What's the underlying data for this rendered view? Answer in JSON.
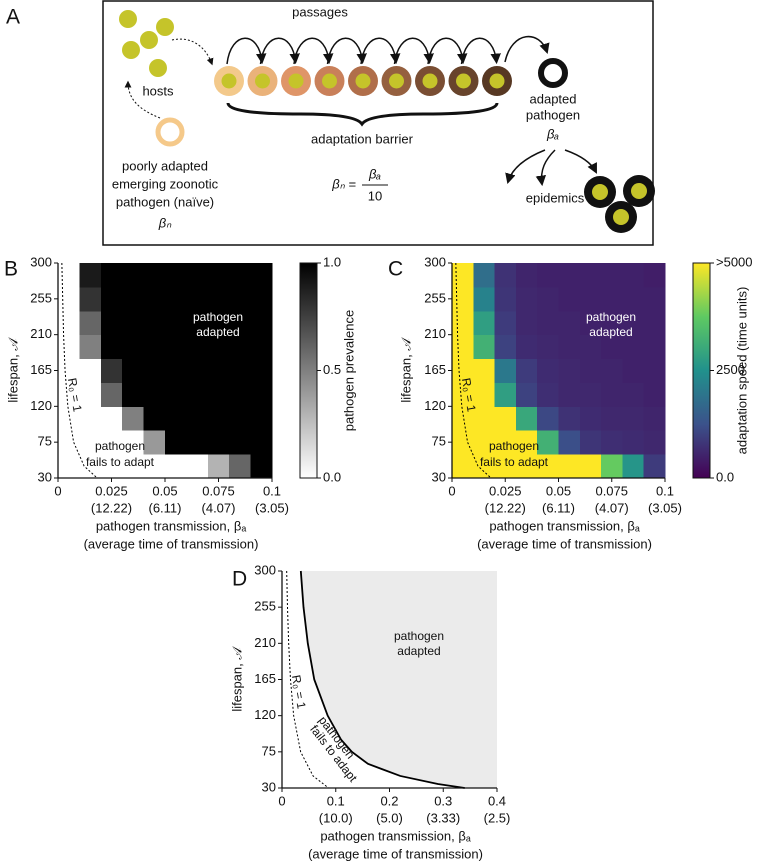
{
  "panel_labels": [
    "A",
    "B",
    "C",
    "D"
  ],
  "diagram": {
    "passages": "passages",
    "hosts": "hosts",
    "adapted": [
      "adapted",
      "pathogen",
      "βₐ"
    ],
    "barrier": "adaptation barrier",
    "naive": [
      "poorly adapted",
      "emerging zoonotic",
      "pathogen (naïve)",
      "βₙ"
    ],
    "formula_lhs": "βₙ =",
    "formula_num": "βₐ",
    "formula_den": "10",
    "epidemics": "epidemics"
  },
  "chart_data": [
    {
      "type": "heatmap",
      "xlim": [
        0,
        0.1
      ],
      "ylim": [
        30,
        300
      ],
      "xticks": [
        0,
        0.025,
        0.05,
        0.075,
        0.1
      ],
      "xticks_secondary": [
        null,
        "(12.22)",
        "(6.11)",
        "(4.07)",
        "(3.05)"
      ],
      "yticks": [
        30,
        75,
        120,
        165,
        210,
        255,
        300
      ],
      "x_label": "pathogen transmission, βₐ",
      "x_label_secondary": "(average time of transmission)",
      "y_label": "lifespan, 𝒜",
      "x_bins": [
        0,
        0.01,
        0.02,
        0.03,
        0.04,
        0.05,
        0.06,
        0.07,
        0.08,
        0.09,
        0.1
      ],
      "y_bins": [
        30,
        60,
        90,
        120,
        150,
        180,
        210,
        240,
        270,
        300
      ],
      "values": [
        [
          0,
          0,
          0,
          0,
          0,
          0,
          0,
          0.3,
          0.6,
          1
        ],
        [
          0,
          0,
          0,
          0,
          0.4,
          1,
          1,
          1,
          1,
          1
        ],
        [
          0,
          0,
          0,
          0.5,
          1,
          1,
          1,
          1,
          1,
          1
        ],
        [
          0,
          0,
          0.6,
          1,
          1,
          1,
          1,
          1,
          1,
          1
        ],
        [
          0,
          0,
          0.8,
          1,
          1,
          1,
          1,
          1,
          1,
          1
        ],
        [
          0,
          0.5,
          1,
          1,
          1,
          1,
          1,
          1,
          1,
          1
        ],
        [
          0,
          0.6,
          1,
          1,
          1,
          1,
          1,
          1,
          1,
          1
        ],
        [
          0,
          0.8,
          1,
          1,
          1,
          1,
          1,
          1,
          1,
          1
        ],
        [
          0,
          0.9,
          1,
          1,
          1,
          1,
          1,
          1,
          1,
          1
        ]
      ],
      "colormap": [
        "#ffffff",
        "#000000"
      ],
      "colorbar": {
        "label": "pathogen  prevalence",
        "lim": [
          0,
          1
        ],
        "ticks": [
          {
            "value": 0,
            "label": "0.0"
          },
          0.5,
          {
            "value": 1,
            "label": "1.0"
          }
        ]
      },
      "series": [
        {
          "x": [
            0.0018,
            0.0022,
            0.0026,
            0.0033,
            0.0046,
            0.0073,
            0.0122,
            0.0183
          ],
          "values": [
            300,
            255,
            210,
            165,
            120,
            75,
            45,
            30
          ],
          "color": "#000000",
          "style": "dashed"
        }
      ],
      "annotations": [
        "pathogen",
        "adapted",
        "pathogen",
        "fails to adapt",
        "R₀ = 1"
      ]
    },
    {
      "type": "heatmap",
      "xlim": [
        0,
        0.1
      ],
      "ylim": [
        30,
        300
      ],
      "xticks": [
        0,
        0.025,
        0.05,
        0.075,
        0.1
      ],
      "xticks_secondary": [
        null,
        "(12.22)",
        "(6.11)",
        "(4.07)",
        "(3.05)"
      ],
      "yticks": [
        30,
        75,
        120,
        165,
        210,
        255,
        300
      ],
      "x_label": "pathogen transmission, βₐ",
      "x_label_secondary": "(average time of transmission)",
      "y_label": "lifespan, 𝒜",
      "x_bins": [
        0,
        0.01,
        0.02,
        0.03,
        0.04,
        0.05,
        0.06,
        0.07,
        0.08,
        0.09,
        0.1
      ],
      "y_bins": [
        30,
        60,
        90,
        120,
        150,
        180,
        210,
        240,
        270,
        300
      ],
      "values": [
        [
          5000,
          5000,
          5000,
          5000,
          5000,
          5000,
          5000,
          3800,
          2600,
          900
        ],
        [
          5000,
          5000,
          5000,
          5000,
          3200,
          1200,
          800,
          700,
          650,
          600
        ],
        [
          5000,
          5000,
          5000,
          3000,
          1100,
          750,
          650,
          600,
          600,
          550
        ],
        [
          5000,
          5000,
          2800,
          1000,
          700,
          600,
          600,
          550,
          550,
          500
        ],
        [
          5000,
          5000,
          2000,
          900,
          650,
          600,
          550,
          550,
          500,
          500
        ],
        [
          5000,
          3200,
          1000,
          650,
          600,
          550,
          550,
          500,
          500,
          500
        ],
        [
          5000,
          2800,
          900,
          600,
          550,
          550,
          500,
          500,
          500,
          500
        ],
        [
          5000,
          2200,
          800,
          600,
          550,
          500,
          500,
          500,
          500,
          500
        ],
        [
          5000,
          1800,
          750,
          550,
          500,
          500,
          500,
          500,
          500,
          450
        ]
      ],
      "colormap": [
        "#440154",
        "#3b528b",
        "#21918c",
        "#5ec962",
        "#fde725"
      ],
      "colorbar": {
        "label": "adaptation speed (time units)",
        "lim": [
          0,
          5000
        ],
        "ticks": [
          {
            "value": 0,
            "label": "0.0"
          },
          2500,
          {
            "value": 5000,
            "label": ">5000"
          }
        ]
      },
      "series": [
        {
          "x": [
            0.0018,
            0.0022,
            0.0026,
            0.0033,
            0.0046,
            0.0073,
            0.0122,
            0.0183
          ],
          "values": [
            300,
            255,
            210,
            165,
            120,
            75,
            45,
            30
          ],
          "color": "#000000",
          "style": "dashed"
        }
      ],
      "annotations": [
        "pathogen",
        "adapted",
        "pathogen",
        "fails to adapt",
        "R₀ = 1"
      ]
    },
    {
      "type": "line",
      "xlim": [
        0,
        0.4
      ],
      "ylim": [
        30,
        300
      ],
      "xticks": [
        0,
        0.1,
        0.2,
        0.3,
        0.4
      ],
      "xticks_secondary": [
        null,
        "(10.0)",
        "(5.0)",
        "(3.33)",
        "(2.5)"
      ],
      "yticks": [
        30,
        75,
        120,
        165,
        210,
        255,
        300
      ],
      "x_label": "pathogen transmission, βₐ",
      "x_label_secondary": "(average time of transmission)",
      "y_label": "lifespan, 𝒜",
      "series": [
        {
          "x": [
            0.0087,
            0.0102,
            0.0124,
            0.0158,
            0.0217,
            0.0347,
            0.0578,
            0.0867
          ],
          "values": [
            300,
            255,
            210,
            165,
            120,
            75,
            45,
            30
          ],
          "color": "#000000",
          "style": "dashed"
        },
        {
          "x": [
            0.035,
            0.04,
            0.048,
            0.06,
            0.085,
            0.11,
            0.13,
            0.16,
            0.22,
            0.29,
            0.34
          ],
          "values": [
            300,
            255,
            210,
            165,
            120,
            90,
            75,
            60,
            45,
            35,
            30
          ],
          "color": "#000000",
          "style": "solid",
          "fill_right": "#ebebeb"
        }
      ],
      "annotations": [
        "pathogen",
        "adapted",
        "pathogen",
        "fails to adapt",
        "R₀ = 1"
      ]
    }
  ]
}
